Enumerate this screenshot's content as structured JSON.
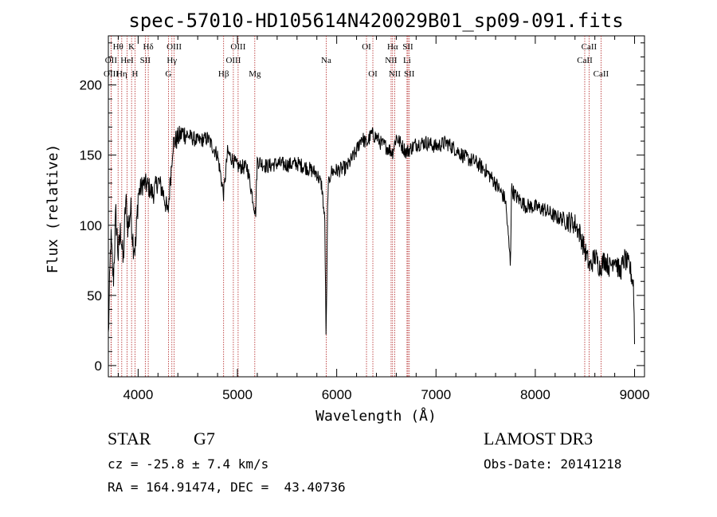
{
  "chart_data": {
    "type": "line",
    "title": "spec-57010-HD105614N420029B01_sp09-091.fits",
    "xlabel": "Wavelength (Å)",
    "ylabel": "Flux (relative)",
    "xlim": [
      3700,
      9100
    ],
    "ylim": [
      -8,
      235
    ],
    "xticks": [
      4000,
      5000,
      6000,
      7000,
      8000,
      9000
    ],
    "xtick_labels": [
      "4000",
      "5000",
      "6000",
      "7000",
      "8000",
      "9000"
    ],
    "yticks": [
      0,
      50,
      100,
      150,
      200
    ],
    "ytick_labels": [
      "0",
      "50",
      "100",
      "150",
      "200"
    ],
    "line_color": "#000000",
    "marker_color": "#b22222",
    "series": [
      {
        "name": "spectrum",
        "x": [
          3700,
          3725,
          3750,
          3775,
          3800,
          3825,
          3850,
          3875,
          3900,
          3925,
          3950,
          3975,
          4000,
          4050,
          4100,
          4150,
          4200,
          4250,
          4300,
          4350,
          4400,
          4450,
          4500,
          4600,
          4700,
          4800,
          4861,
          4900,
          5000,
          5100,
          5183,
          5200,
          5300,
          5400,
          5500,
          5600,
          5700,
          5800,
          5850,
          5880,
          5893,
          5900,
          5910,
          5940,
          6000,
          6100,
          6200,
          6250,
          6300,
          6350,
          6400,
          6450,
          6500,
          6563,
          6600,
          6700,
          6800,
          6900,
          7000,
          7100,
          7200,
          7300,
          7400,
          7500,
          7600,
          7700,
          7750,
          7760,
          7800,
          7900,
          8000,
          8100,
          8200,
          8300,
          8400,
          8450,
          8500,
          8550,
          8600,
          8650,
          8700,
          8750,
          8800,
          8850,
          8900,
          8950,
          8990,
          9000
        ],
        "y": [
          20,
          92,
          60,
          108,
          78,
          98,
          72,
          118,
          98,
          112,
          88,
          84,
          122,
          130,
          128,
          122,
          132,
          124,
          108,
          158,
          162,
          166,
          164,
          160,
          162,
          150,
          122,
          152,
          142,
          141,
          108,
          146,
          142,
          144,
          143,
          144,
          141,
          137,
          128,
          102,
          18,
          55,
          125,
          138,
          139,
          141,
          153,
          163,
          158,
          165,
          163,
          158,
          156,
          152,
          163,
          152,
          158,
          159,
          156,
          159,
          154,
          148,
          145,
          139,
          130,
          118,
          72,
          126,
          121,
          114,
          113,
          111,
          106,
          104,
          101,
          94,
          82,
          70,
          78,
          70,
          76,
          70,
          78,
          66,
          76,
          70,
          58,
          18
        ]
      }
    ],
    "lines": [
      {
        "label": "Hθ",
        "wavelength": 3798,
        "row": 1
      },
      {
        "label": "OII",
        "wavelength": 3727,
        "row": 2
      },
      {
        "label": "OIII",
        "wavelength": 3728,
        "row": 3
      },
      {
        "label": "K",
        "wavelength": 3934,
        "row": 1
      },
      {
        "label": "HeI",
        "wavelength": 3889,
        "row": 2
      },
      {
        "label": "Hη",
        "wavelength": 3835,
        "row": 3
      },
      {
        "label": "Hδ",
        "wavelength": 4102,
        "row": 1
      },
      {
        "label": "SII",
        "wavelength": 4072,
        "row": 2
      },
      {
        "label": "H",
        "wavelength": 3969,
        "row": 3
      },
      {
        "label": "OIII",
        "wavelength": 4363,
        "row": 1
      },
      {
        "label": "Hγ",
        "wavelength": 4340,
        "row": 2
      },
      {
        "label": "G",
        "wavelength": 4305,
        "row": 3
      },
      {
        "label": "Hβ",
        "wavelength": 4861,
        "row": 3
      },
      {
        "label": "OIII",
        "wavelength": 5007,
        "row": 1
      },
      {
        "label": "OIII",
        "wavelength": 4959,
        "row": 2
      },
      {
        "label": "Mg",
        "wavelength": 5175,
        "row": 3
      },
      {
        "label": "Na",
        "wavelength": 5894,
        "row": 2
      },
      {
        "label": "OI",
        "wavelength": 6300,
        "row": 1
      },
      {
        "label": "OI",
        "wavelength": 6364,
        "row": 3
      },
      {
        "label": "Hα",
        "wavelength": 6563,
        "row": 1
      },
      {
        "label": "NII",
        "wavelength": 6548,
        "row": 2
      },
      {
        "label": "NII",
        "wavelength": 6584,
        "row": 3
      },
      {
        "label": "SII",
        "wavelength": 6717,
        "row": 1
      },
      {
        "label": "Li",
        "wavelength": 6708,
        "row": 2
      },
      {
        "label": "SII",
        "wavelength": 6731,
        "row": 3
      },
      {
        "label": "CaII",
        "wavelength": 8542,
        "row": 1
      },
      {
        "label": "CaII",
        "wavelength": 8498,
        "row": 2
      },
      {
        "label": "CaII",
        "wavelength": 8662,
        "row": 3
      }
    ]
  },
  "info": {
    "class": "STAR",
    "subclass": "G7",
    "survey": "LAMOST DR3",
    "cz": "cz = -25.8 ± 7.4 km/s",
    "obs_date": "Obs-Date: 20141218",
    "coords": "RA = 164.91474, DEC =  43.40736"
  }
}
